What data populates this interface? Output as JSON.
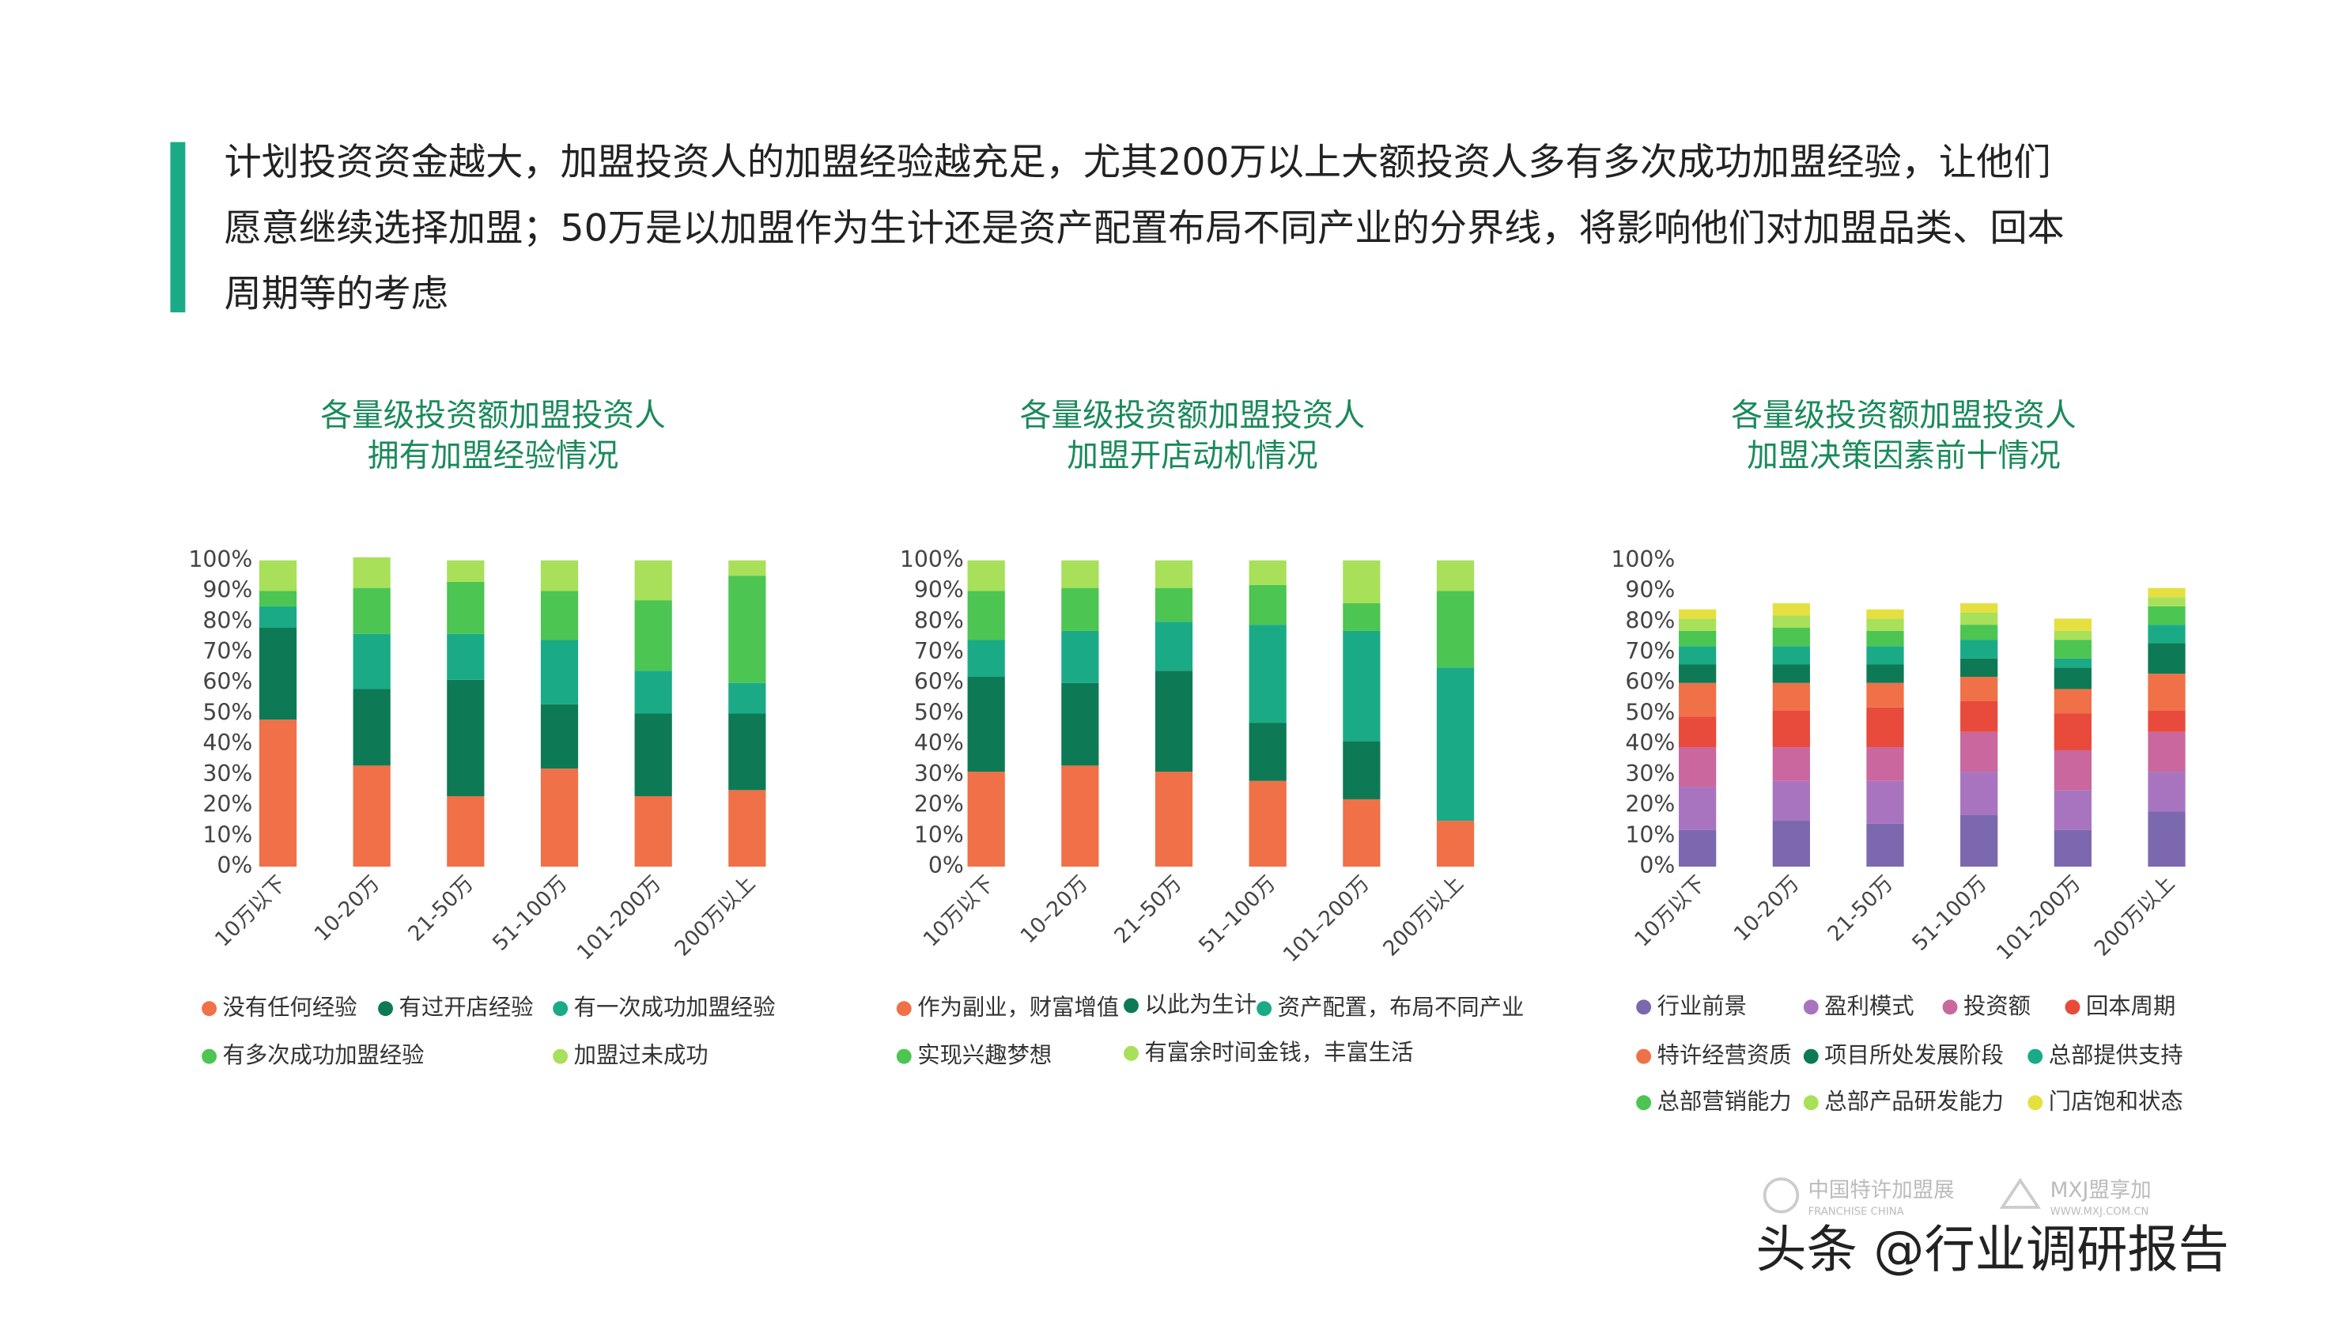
{
  "header": {
    "lines": [
      "计划投资资金越大，加盟投资人的加盟经验越充足，尤其200万以上大额投资人多有多次成功加盟经验，让他们",
      "愿意继续选择加盟；50万是以加盟作为生计还是资产配置布局不同产业的分界线，将影响他们对加盟品类、回本",
      "周期等的考虑"
    ]
  },
  "chart_data": [
    {
      "type": "bar",
      "stacked": true,
      "title": [
        "各量级投资额加盟投资人",
        "拥有加盟经验情况"
      ],
      "categories": [
        "10万以下",
        "10-20万",
        "21-50万",
        "51-100万",
        "101-200万",
        "200万以上"
      ],
      "ylim": [
        0,
        100
      ],
      "yticks": [
        {
          "value": 0,
          "label": "0%"
        },
        {
          "value": 10,
          "label": "10%"
        },
        {
          "value": 20,
          "label": "20%"
        },
        {
          "value": 30,
          "label": "30%"
        },
        {
          "value": 40,
          "label": "40%"
        },
        {
          "value": 50,
          "label": "50%"
        },
        {
          "value": 60,
          "label": "60%"
        },
        {
          "value": 70,
          "label": "70%"
        },
        {
          "value": 80,
          "label": "80%"
        },
        {
          "value": 90,
          "label": "90%"
        },
        {
          "value": 100,
          "label": "100%"
        }
      ],
      "series": [
        {
          "name": "没有任何经验",
          "color": "#f07048",
          "values": [
            48,
            33,
            23,
            32,
            23,
            25
          ]
        },
        {
          "name": "有过开店经验",
          "color": "#0e7a55",
          "values": [
            30,
            25,
            38,
            21,
            27,
            25
          ]
        },
        {
          "name": "有一次成功加盟经验",
          "color": "#1aab86",
          "values": [
            7,
            18,
            15,
            21,
            14,
            10
          ]
        },
        {
          "name": "有多次成功加盟经验",
          "color": "#4cc552",
          "values": [
            5,
            15,
            17,
            16,
            23,
            35
          ]
        },
        {
          "name": "加盟过未成功",
          "color": "#a8e05a",
          "values": [
            10,
            10,
            7,
            10,
            13,
            5
          ]
        }
      ]
    },
    {
      "type": "bar",
      "stacked": true,
      "title": [
        "各量级投资额加盟投资人",
        "加盟开店动机情况"
      ],
      "categories": [
        "10万以下",
        "10–20万",
        "21–50万",
        "51–100万",
        "101–200万",
        "200万以上"
      ],
      "ylim": [
        0,
        100
      ],
      "yticks": [
        {
          "value": 0,
          "label": "0%"
        },
        {
          "value": 10,
          "label": "10%"
        },
        {
          "value": 20,
          "label": "20%"
        },
        {
          "value": 30,
          "label": "30%"
        },
        {
          "value": 40,
          "label": "40%"
        },
        {
          "value": 50,
          "label": "50%"
        },
        {
          "value": 60,
          "label": "60%"
        },
        {
          "value": 70,
          "label": "70%"
        },
        {
          "value": 80,
          "label": "80%"
        },
        {
          "value": 90,
          "label": "90%"
        },
        {
          "value": 100,
          "label": "100%"
        }
      ],
      "series": [
        {
          "name": "作为副业，财富增值",
          "color": "#f07048",
          "values": [
            31,
            33,
            31,
            28,
            22,
            15
          ]
        },
        {
          "name": "以此为生计",
          "color": "#0e7a55",
          "values": [
            31,
            27,
            33,
            19,
            19,
            0
          ]
        },
        {
          "name": "资产配置，布局不同产业",
          "color": "#1aab86",
          "values": [
            12,
            17,
            16,
            32,
            36,
            50
          ]
        },
        {
          "name": "实现兴趣梦想",
          "color": "#4cc552",
          "values": [
            16,
            14,
            11,
            13,
            9,
            25
          ]
        },
        {
          "name": "有富余时间金钱，丰富生活",
          "color": "#a8e05a",
          "values": [
            10,
            9,
            9,
            8,
            14,
            10
          ]
        }
      ]
    },
    {
      "type": "bar",
      "stacked": true,
      "title": [
        "各量级投资额加盟投资人",
        "加盟决策因素前十情况"
      ],
      "categories": [
        "10万以下",
        "10-20万",
        "21-50万",
        "51-100万",
        "101-200万",
        "200万以上"
      ],
      "ylim": [
        0,
        100
      ],
      "yticks": [
        {
          "value": 0,
          "label": "0%"
        },
        {
          "value": 10,
          "label": "10%"
        },
        {
          "value": 20,
          "label": "20%"
        },
        {
          "value": 30,
          "label": "30%"
        },
        {
          "value": 40,
          "label": "40%"
        },
        {
          "value": 50,
          "label": "50%"
        },
        {
          "value": 60,
          "label": "60%"
        },
        {
          "value": 70,
          "label": "70%"
        },
        {
          "value": 80,
          "label": "80%"
        },
        {
          "value": 90,
          "label": "90%"
        },
        {
          "value": 100,
          "label": "100%"
        }
      ],
      "series": [
        {
          "name": "行业前景",
          "color": "#7b68ae",
          "values": [
            12,
            15,
            14,
            17,
            12,
            18
          ]
        },
        {
          "name": "盈利模式",
          "color": "#a874c0",
          "values": [
            14,
            13,
            14,
            14,
            13,
            13
          ]
        },
        {
          "name": "投资额",
          "color": "#c9679e",
          "values": [
            13,
            11,
            11,
            13,
            13,
            13
          ]
        },
        {
          "name": "回本周期",
          "color": "#e84a3c",
          "values": [
            10,
            12,
            13,
            10,
            12,
            7
          ]
        },
        {
          "name": "特许经营资质",
          "color": "#f07048",
          "values": [
            11,
            9,
            8,
            8,
            8,
            12
          ]
        },
        {
          "name": "项目所处发展阶段",
          "color": "#0e7a55",
          "values": [
            6,
            6,
            6,
            6,
            7,
            10
          ]
        },
        {
          "name": "总部提供支持",
          "color": "#1aab86",
          "values": [
            6,
            6,
            6,
            6,
            3,
            6
          ]
        },
        {
          "name": "总部营销能力",
          "color": "#4cc552",
          "values": [
            5,
            6,
            5,
            5,
            6,
            6
          ]
        },
        {
          "name": "总部产品研发能力",
          "color": "#a8e05a",
          "values": [
            4,
            4,
            4,
            4,
            3,
            3
          ]
        },
        {
          "name": "门店饱和状态",
          "color": "#e5e040",
          "values": [
            3,
            4,
            3,
            3,
            4,
            3
          ]
        }
      ]
    }
  ],
  "footer": {
    "logo1": "中国特许加盟展",
    "logo1_en": "FRANCHISE CHINA",
    "logo2": "MXJ盟享加",
    "logo2_url": "WWW.MXJ.COM.CN",
    "watermark": "头条 @行业调研报告"
  }
}
